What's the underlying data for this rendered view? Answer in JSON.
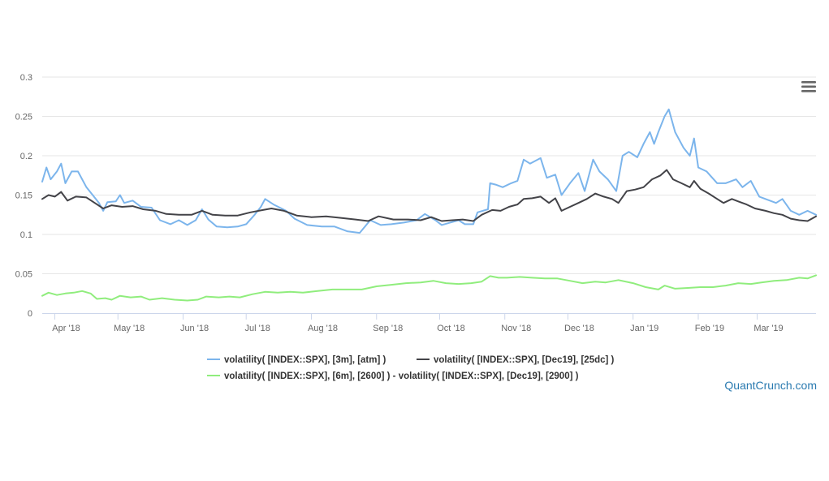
{
  "chart_data": {
    "type": "line",
    "title": "",
    "xlabel": "",
    "ylabel": "",
    "x_range": [
      "2018-03-26",
      "2019-03-29"
    ],
    "ylim": [
      0,
      0.3
    ],
    "y_ticks": [
      {
        "value": 0,
        "label": "0"
      },
      {
        "value": 0.05,
        "label": "0.05"
      },
      {
        "value": 0.1,
        "label": "0.1"
      },
      {
        "value": 0.15,
        "label": "0.15"
      },
      {
        "value": 0.2,
        "label": "0.2"
      },
      {
        "value": 0.25,
        "label": "0.25"
      },
      {
        "value": 0.3,
        "label": "0.3"
      }
    ],
    "x_ticks": [
      {
        "date": "2018-04-01",
        "label": "Apr '18"
      },
      {
        "date": "2018-05-01",
        "label": "May '18"
      },
      {
        "date": "2018-06-01",
        "label": "Jun '18"
      },
      {
        "date": "2018-07-01",
        "label": "Jul '18"
      },
      {
        "date": "2018-08-01",
        "label": "Aug '18"
      },
      {
        "date": "2018-09-01",
        "label": "Sep '18"
      },
      {
        "date": "2018-10-01",
        "label": "Oct '18"
      },
      {
        "date": "2018-11-01",
        "label": "Nov '18"
      },
      {
        "date": "2018-12-01",
        "label": "Dec '18"
      },
      {
        "date": "2019-01-01",
        "label": "Jan '19"
      },
      {
        "date": "2019-02-01",
        "label": "Feb '19"
      },
      {
        "date": "2019-03-01",
        "label": "Mar '19"
      }
    ],
    "grid": "horizontal",
    "legend_position": "bottom-center",
    "series": [
      {
        "name": "volatility( [INDEX::SPX], [3m], [atm] )",
        "color": "#7cb5ec",
        "points": [
          [
            "2018-03-26",
            0.167
          ],
          [
            "2018-03-28",
            0.185
          ],
          [
            "2018-03-30",
            0.17
          ],
          [
            "2018-04-02",
            0.18
          ],
          [
            "2018-04-04",
            0.19
          ],
          [
            "2018-04-06",
            0.165
          ],
          [
            "2018-04-09",
            0.18
          ],
          [
            "2018-04-12",
            0.18
          ],
          [
            "2018-04-16",
            0.16
          ],
          [
            "2018-04-19",
            0.15
          ],
          [
            "2018-04-22",
            0.14
          ],
          [
            "2018-04-24",
            0.13
          ],
          [
            "2018-04-26",
            0.141
          ],
          [
            "2018-04-30",
            0.142
          ],
          [
            "2018-05-02",
            0.15
          ],
          [
            "2018-05-04",
            0.14
          ],
          [
            "2018-05-08",
            0.143
          ],
          [
            "2018-05-12",
            0.135
          ],
          [
            "2018-05-17",
            0.134
          ],
          [
            "2018-05-21",
            0.118
          ],
          [
            "2018-05-26",
            0.113
          ],
          [
            "2018-05-30",
            0.118
          ],
          [
            "2018-06-03",
            0.112
          ],
          [
            "2018-06-07",
            0.118
          ],
          [
            "2018-06-10",
            0.132
          ],
          [
            "2018-06-13",
            0.119
          ],
          [
            "2018-06-17",
            0.11
          ],
          [
            "2018-06-22",
            0.109
          ],
          [
            "2018-06-27",
            0.11
          ],
          [
            "2018-07-01",
            0.113
          ],
          [
            "2018-07-05",
            0.125
          ],
          [
            "2018-07-08",
            0.135
          ],
          [
            "2018-07-10",
            0.145
          ],
          [
            "2018-07-14",
            0.138
          ],
          [
            "2018-07-20",
            0.13
          ],
          [
            "2018-07-24",
            0.12
          ],
          [
            "2018-07-30",
            0.112
          ],
          [
            "2018-08-06",
            0.11
          ],
          [
            "2018-08-12",
            0.11
          ],
          [
            "2018-08-18",
            0.104
          ],
          [
            "2018-08-24",
            0.102
          ],
          [
            "2018-08-29",
            0.118
          ],
          [
            "2018-09-03",
            0.112
          ],
          [
            "2018-09-08",
            0.113
          ],
          [
            "2018-09-14",
            0.115
          ],
          [
            "2018-09-20",
            0.118
          ],
          [
            "2018-09-24",
            0.126
          ],
          [
            "2018-09-29",
            0.118
          ],
          [
            "2018-10-02",
            0.112
          ],
          [
            "2018-10-06",
            0.115
          ],
          [
            "2018-10-10",
            0.118
          ],
          [
            "2018-10-13",
            0.113
          ],
          [
            "2018-10-17",
            0.113
          ],
          [
            "2018-10-19",
            0.128
          ],
          [
            "2018-10-24",
            0.132
          ],
          [
            "2018-10-25",
            0.165
          ],
          [
            "2018-10-28",
            0.163
          ],
          [
            "2018-10-31",
            0.16
          ],
          [
            "2018-11-04",
            0.165
          ],
          [
            "2018-11-07",
            0.168
          ],
          [
            "2018-11-10",
            0.195
          ],
          [
            "2018-11-13",
            0.19
          ],
          [
            "2018-11-18",
            0.197
          ],
          [
            "2018-11-21",
            0.172
          ],
          [
            "2018-11-25",
            0.176
          ],
          [
            "2018-11-28",
            0.15
          ],
          [
            "2018-12-02",
            0.165
          ],
          [
            "2018-12-06",
            0.178
          ],
          [
            "2018-12-09",
            0.155
          ],
          [
            "2018-12-13",
            0.195
          ],
          [
            "2018-12-16",
            0.18
          ],
          [
            "2018-12-20",
            0.17
          ],
          [
            "2018-12-24",
            0.155
          ],
          [
            "2018-12-27",
            0.2
          ],
          [
            "2018-12-30",
            0.205
          ],
          [
            "2019-01-03",
            0.198
          ],
          [
            "2019-01-06",
            0.215
          ],
          [
            "2019-01-09",
            0.23
          ],
          [
            "2019-01-11",
            0.215
          ],
          [
            "2019-01-13",
            0.23
          ],
          [
            "2019-01-16",
            0.25
          ],
          [
            "2019-01-18",
            0.259
          ],
          [
            "2019-01-21",
            0.23
          ],
          [
            "2019-01-25",
            0.21
          ],
          [
            "2019-01-28",
            0.2
          ],
          [
            "2019-01-30",
            0.222
          ],
          [
            "2019-02-01",
            0.185
          ],
          [
            "2019-02-05",
            0.18
          ],
          [
            "2019-02-10",
            0.165
          ],
          [
            "2019-02-14",
            0.165
          ],
          [
            "2019-02-19",
            0.17
          ],
          [
            "2019-02-22",
            0.16
          ],
          [
            "2019-02-26",
            0.168
          ],
          [
            "2019-03-02",
            0.148
          ],
          [
            "2019-03-06",
            0.144
          ],
          [
            "2019-03-10",
            0.14
          ],
          [
            "2019-03-13",
            0.145
          ],
          [
            "2019-03-17",
            0.13
          ],
          [
            "2019-03-21",
            0.125
          ],
          [
            "2019-03-25",
            0.13
          ],
          [
            "2019-03-29",
            0.125
          ]
        ]
      },
      {
        "name": "volatility( [INDEX::SPX], [Dec19], [25dc] )",
        "color": "#434348",
        "points": [
          [
            "2018-03-26",
            0.145
          ],
          [
            "2018-03-29",
            0.15
          ],
          [
            "2018-04-01",
            0.148
          ],
          [
            "2018-04-04",
            0.154
          ],
          [
            "2018-04-07",
            0.143
          ],
          [
            "2018-04-11",
            0.148
          ],
          [
            "2018-04-16",
            0.147
          ],
          [
            "2018-04-20",
            0.14
          ],
          [
            "2018-04-24",
            0.133
          ],
          [
            "2018-04-28",
            0.137
          ],
          [
            "2018-05-03",
            0.135
          ],
          [
            "2018-05-08",
            0.136
          ],
          [
            "2018-05-13",
            0.132
          ],
          [
            "2018-05-19",
            0.13
          ],
          [
            "2018-05-24",
            0.126
          ],
          [
            "2018-05-30",
            0.125
          ],
          [
            "2018-06-05",
            0.125
          ],
          [
            "2018-06-10",
            0.13
          ],
          [
            "2018-06-15",
            0.125
          ],
          [
            "2018-06-21",
            0.124
          ],
          [
            "2018-06-27",
            0.124
          ],
          [
            "2018-07-03",
            0.128
          ],
          [
            "2018-07-09",
            0.131
          ],
          [
            "2018-07-13",
            0.133
          ],
          [
            "2018-07-19",
            0.13
          ],
          [
            "2018-07-25",
            0.124
          ],
          [
            "2018-08-01",
            0.122
          ],
          [
            "2018-08-08",
            0.123
          ],
          [
            "2018-08-15",
            0.121
          ],
          [
            "2018-08-22",
            0.119
          ],
          [
            "2018-08-28",
            0.117
          ],
          [
            "2018-09-02",
            0.123
          ],
          [
            "2018-09-09",
            0.119
          ],
          [
            "2018-09-16",
            0.119
          ],
          [
            "2018-09-22",
            0.118
          ],
          [
            "2018-09-27",
            0.122
          ],
          [
            "2018-10-02",
            0.117
          ],
          [
            "2018-10-07",
            0.118
          ],
          [
            "2018-10-12",
            0.119
          ],
          [
            "2018-10-17",
            0.117
          ],
          [
            "2018-10-21",
            0.125
          ],
          [
            "2018-10-26",
            0.131
          ],
          [
            "2018-10-30",
            0.13
          ],
          [
            "2018-11-03",
            0.135
          ],
          [
            "2018-11-07",
            0.138
          ],
          [
            "2018-11-10",
            0.145
          ],
          [
            "2018-11-14",
            0.146
          ],
          [
            "2018-11-18",
            0.148
          ],
          [
            "2018-11-22",
            0.14
          ],
          [
            "2018-11-25",
            0.146
          ],
          [
            "2018-11-28",
            0.13
          ],
          [
            "2018-12-02",
            0.135
          ],
          [
            "2018-12-06",
            0.14
          ],
          [
            "2018-12-10",
            0.145
          ],
          [
            "2018-12-14",
            0.152
          ],
          [
            "2018-12-18",
            0.148
          ],
          [
            "2018-12-22",
            0.145
          ],
          [
            "2018-12-25",
            0.14
          ],
          [
            "2018-12-29",
            0.155
          ],
          [
            "2019-01-02",
            0.157
          ],
          [
            "2019-01-06",
            0.16
          ],
          [
            "2019-01-10",
            0.17
          ],
          [
            "2019-01-14",
            0.175
          ],
          [
            "2019-01-17",
            0.182
          ],
          [
            "2019-01-20",
            0.17
          ],
          [
            "2019-01-24",
            0.165
          ],
          [
            "2019-01-28",
            0.16
          ],
          [
            "2019-01-30",
            0.168
          ],
          [
            "2019-02-02",
            0.158
          ],
          [
            "2019-02-06",
            0.152
          ],
          [
            "2019-02-10",
            0.145
          ],
          [
            "2019-02-13",
            0.14
          ],
          [
            "2019-02-17",
            0.145
          ],
          [
            "2019-02-20",
            0.142
          ],
          [
            "2019-02-24",
            0.138
          ],
          [
            "2019-02-28",
            0.133
          ],
          [
            "2019-03-05",
            0.13
          ],
          [
            "2019-03-09",
            0.127
          ],
          [
            "2019-03-13",
            0.125
          ],
          [
            "2019-03-17",
            0.12
          ],
          [
            "2019-03-21",
            0.118
          ],
          [
            "2019-03-25",
            0.117
          ],
          [
            "2019-03-29",
            0.123
          ]
        ]
      },
      {
        "name": "volatility( [INDEX::SPX], [6m], [2600] ) - volatility( [INDEX::SPX], [Dec19], [2900] )",
        "color": "#90ed7d",
        "points": [
          [
            "2018-03-26",
            0.022
          ],
          [
            "2018-03-29",
            0.026
          ],
          [
            "2018-04-02",
            0.023
          ],
          [
            "2018-04-06",
            0.025
          ],
          [
            "2018-04-10",
            0.026
          ],
          [
            "2018-04-14",
            0.028
          ],
          [
            "2018-04-18",
            0.025
          ],
          [
            "2018-04-21",
            0.018
          ],
          [
            "2018-04-25",
            0.019
          ],
          [
            "2018-04-28",
            0.017
          ],
          [
            "2018-05-02",
            0.022
          ],
          [
            "2018-05-07",
            0.02
          ],
          [
            "2018-05-12",
            0.021
          ],
          [
            "2018-05-16",
            0.017
          ],
          [
            "2018-05-22",
            0.019
          ],
          [
            "2018-05-28",
            0.017
          ],
          [
            "2018-06-03",
            0.016
          ],
          [
            "2018-06-08",
            0.017
          ],
          [
            "2018-06-12",
            0.021
          ],
          [
            "2018-06-18",
            0.02
          ],
          [
            "2018-06-23",
            0.021
          ],
          [
            "2018-06-28",
            0.02
          ],
          [
            "2018-07-04",
            0.024
          ],
          [
            "2018-07-10",
            0.027
          ],
          [
            "2018-07-16",
            0.026
          ],
          [
            "2018-07-22",
            0.027
          ],
          [
            "2018-07-28",
            0.026
          ],
          [
            "2018-08-04",
            0.028
          ],
          [
            "2018-08-11",
            0.03
          ],
          [
            "2018-08-18",
            0.03
          ],
          [
            "2018-08-25",
            0.03
          ],
          [
            "2018-09-01",
            0.034
          ],
          [
            "2018-09-08",
            0.036
          ],
          [
            "2018-09-15",
            0.038
          ],
          [
            "2018-09-22",
            0.039
          ],
          [
            "2018-09-28",
            0.041
          ],
          [
            "2018-10-04",
            0.038
          ],
          [
            "2018-10-10",
            0.037
          ],
          [
            "2018-10-16",
            0.038
          ],
          [
            "2018-10-21",
            0.04
          ],
          [
            "2018-10-25",
            0.047
          ],
          [
            "2018-10-29",
            0.045
          ],
          [
            "2018-11-02",
            0.045
          ],
          [
            "2018-11-08",
            0.046
          ],
          [
            "2018-11-14",
            0.045
          ],
          [
            "2018-11-20",
            0.044
          ],
          [
            "2018-11-26",
            0.044
          ],
          [
            "2018-12-02",
            0.041
          ],
          [
            "2018-12-08",
            0.038
          ],
          [
            "2018-12-14",
            0.04
          ],
          [
            "2018-12-19",
            0.039
          ],
          [
            "2018-12-25",
            0.042
          ],
          [
            "2019-01-01",
            0.038
          ],
          [
            "2019-01-07",
            0.033
          ],
          [
            "2019-01-13",
            0.03
          ],
          [
            "2019-01-16",
            0.035
          ],
          [
            "2019-01-21",
            0.031
          ],
          [
            "2019-01-27",
            0.032
          ],
          [
            "2019-02-02",
            0.033
          ],
          [
            "2019-02-08",
            0.033
          ],
          [
            "2019-02-14",
            0.035
          ],
          [
            "2019-02-20",
            0.038
          ],
          [
            "2019-02-26",
            0.037
          ],
          [
            "2019-03-03",
            0.039
          ],
          [
            "2019-03-09",
            0.041
          ],
          [
            "2019-03-15",
            0.042
          ],
          [
            "2019-03-21",
            0.045
          ],
          [
            "2019-03-25",
            0.044
          ],
          [
            "2019-03-29",
            0.048
          ]
        ]
      }
    ]
  },
  "legend_items": [
    "volatility( [INDEX::SPX], [3m], [atm] )",
    "volatility( [INDEX::SPX], [Dec19], [25dc] )",
    "volatility( [INDEX::SPX], [6m], [2600] ) - volatility( [INDEX::SPX], [Dec19], [2900] )"
  ],
  "credit": "QuantCrunch.com",
  "menu_icon": "hamburger-menu-icon"
}
